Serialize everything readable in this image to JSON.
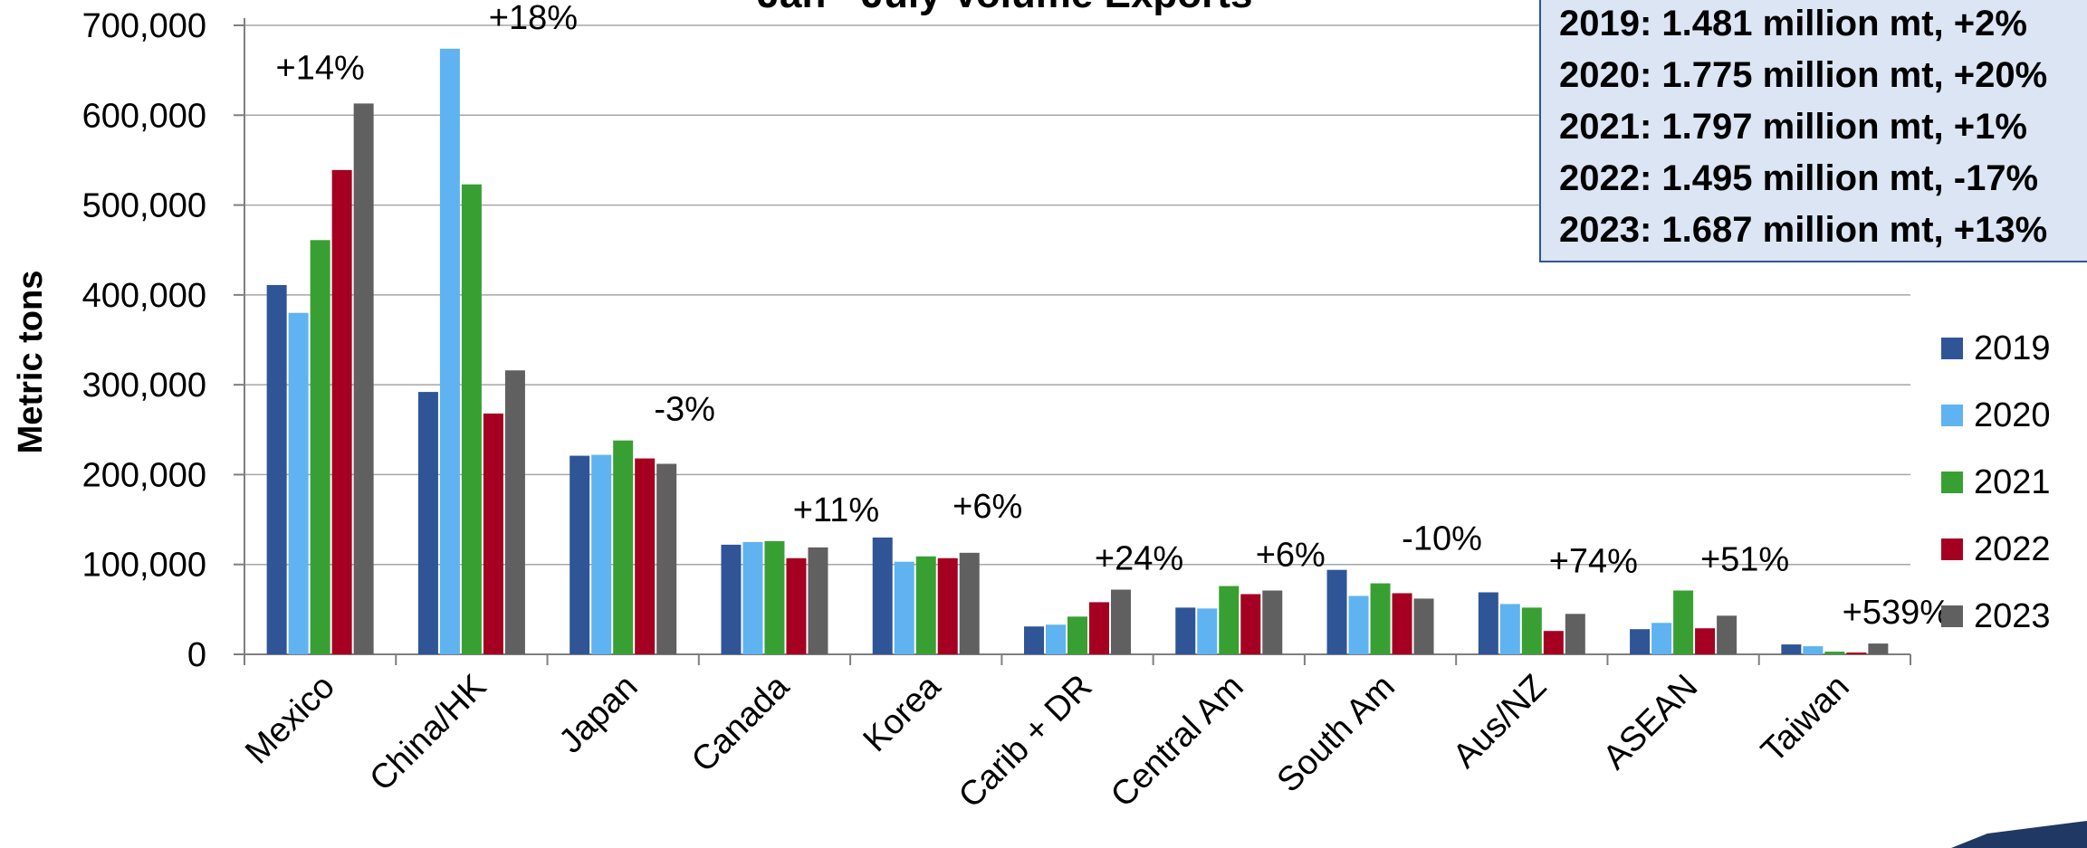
{
  "chart_data": {
    "type": "bar",
    "title": "Jan - July Volume Exports",
    "xlabel": "",
    "ylabel": "Metric tons",
    "ylim": [
      0,
      700000
    ],
    "yticks": [
      0,
      100000,
      200000,
      300000,
      400000,
      500000,
      600000,
      700000
    ],
    "ytick_labels": [
      "0",
      "100,000",
      "200,000",
      "300,000",
      "400,000",
      "500,000",
      "600,000",
      "700,000"
    ],
    "grid": true,
    "legend_position": "right",
    "categories": [
      "Mexico",
      "China/HK",
      "Japan",
      "Canada",
      "Korea",
      "Carib + DR",
      "Central Am",
      "South Am",
      "Aus/NZ",
      "ASEAN",
      "Taiwan"
    ],
    "series": [
      {
        "name": "2019",
        "color": "#2f5597",
        "values": [
          411000,
          292000,
          221000,
          122000,
          130000,
          31000,
          52000,
          94000,
          69000,
          28000,
          11000
        ]
      },
      {
        "name": "2020",
        "color": "#5fb3f0",
        "values": [
          380000,
          674000,
          222000,
          125000,
          103000,
          33000,
          51000,
          65000,
          56000,
          35000,
          9000
        ]
      },
      {
        "name": "2021",
        "color": "#38a033",
        "values": [
          461000,
          523000,
          238000,
          126000,
          109000,
          42000,
          76000,
          79000,
          52000,
          71000,
          3000
        ]
      },
      {
        "name": "2022",
        "color": "#a50021",
        "values": [
          539000,
          268000,
          218000,
          107000,
          107000,
          58000,
          67000,
          68000,
          26000,
          29000,
          2000
        ]
      },
      {
        "name": "2023",
        "color": "#606060",
        "values": [
          613000,
          316000,
          212000,
          119000,
          113000,
          72000,
          71000,
          62000,
          45000,
          43000,
          12000
        ]
      }
    ],
    "annotations": [
      "+14%",
      "+18%",
      "-3%",
      "+11%",
      "+6%",
      "+24%",
      "+6%",
      "-10%",
      "+74%",
      "+51%",
      "+539%"
    ]
  },
  "summary": {
    "lines": [
      "2019: 1.481 million mt, +2%",
      "2020: 1.775 million mt, +20%",
      "2021: 1.797 million mt, +1%",
      "2022: 1.495 million mt, -17%",
      "2023: 1.687 million mt, +13%"
    ]
  },
  "colors": {
    "summary_background": "#dbe5f4",
    "summary_border": "#2f5597",
    "grid": "#a6a6a6",
    "decoration": "#1f3864"
  }
}
